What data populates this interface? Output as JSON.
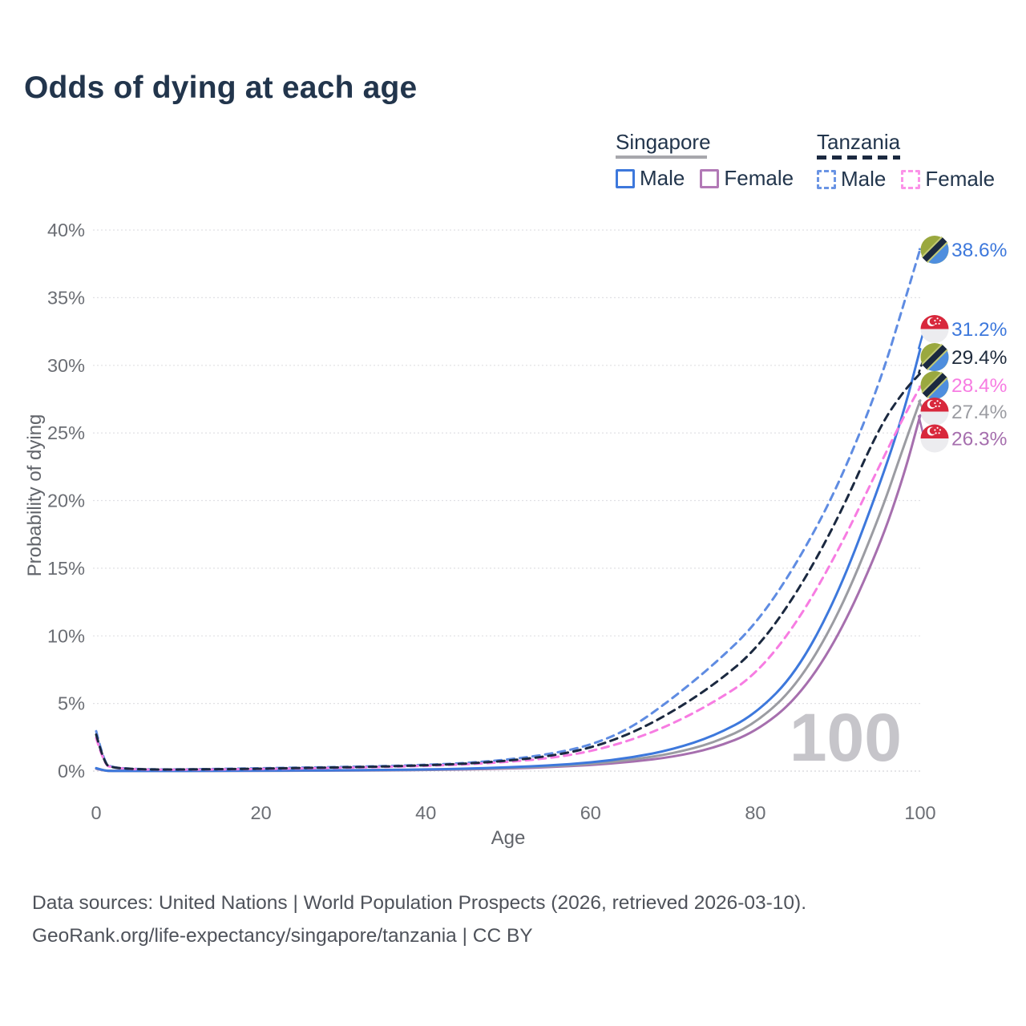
{
  "title": "Odds of dying at each age",
  "legend": {
    "groups": [
      {
        "label": "Singapore",
        "line_style": "solid",
        "line_color": "#a7a7ac",
        "items": [
          {
            "label": "Male",
            "color": "#3d78dc",
            "style": "solid"
          },
          {
            "label": "Female",
            "color": "#b279b6",
            "style": "solid"
          }
        ]
      },
      {
        "label": "Tanzania",
        "line_style": "dashed",
        "line_color": "#1b2940",
        "items": [
          {
            "label": "Male",
            "color": "#6a94e4",
            "style": "dashed"
          },
          {
            "label": "Female",
            "color": "#fb93e8",
            "style": "dashed"
          }
        ]
      }
    ]
  },
  "chart_data": {
    "type": "line",
    "title": "Odds of dying at each age",
    "xlabel": "Age",
    "ylabel": "Probability of dying",
    "xlim": [
      0,
      100
    ],
    "ylim": [
      0,
      40
    ],
    "x_ticks": [
      0,
      20,
      40,
      60,
      80,
      100
    ],
    "y_ticks": [
      0,
      5,
      10,
      15,
      20,
      25,
      30,
      35,
      40
    ],
    "y_tick_suffix": "%",
    "grid": "horizontal-dotted",
    "legend_position": "top-right",
    "watermark": "100",
    "x": [
      0,
      1,
      2,
      3,
      5,
      8,
      12,
      16,
      20,
      25,
      30,
      35,
      40,
      45,
      50,
      55,
      60,
      65,
      70,
      75,
      80,
      85,
      90,
      95,
      98,
      100
    ],
    "series": [
      {
        "name": "Singapore Female",
        "country": "Singapore",
        "sex": "Female",
        "line": "solid",
        "color": "#a66fae",
        "label_color": "#a66fae",
        "end_label": "26.3%",
        "end_value": 26.3,
        "values": [
          0.18,
          0.02,
          0.01,
          0.01,
          0.01,
          0.01,
          0.01,
          0.02,
          0.02,
          0.03,
          0.04,
          0.05,
          0.08,
          0.12,
          0.19,
          0.29,
          0.44,
          0.68,
          1.05,
          1.7,
          2.9,
          5.3,
          9.8,
          16.5,
          21.8,
          26.3
        ]
      },
      {
        "name": "Singapore Both sexes",
        "country": "Singapore",
        "sex": "Both",
        "line": "solid",
        "color": "#9b9ca2",
        "label_color": "#9b9ca2",
        "end_label": "27.4%",
        "end_value": 27.4,
        "values": [
          0.2,
          0.025,
          0.015,
          0.015,
          0.01,
          0.01,
          0.015,
          0.025,
          0.03,
          0.04,
          0.05,
          0.065,
          0.1,
          0.15,
          0.23,
          0.35,
          0.52,
          0.83,
          1.3,
          2.1,
          3.5,
          6.3,
          11.4,
          18.7,
          24.0,
          27.4
        ]
      },
      {
        "name": "Singapore Male",
        "country": "Singapore",
        "sex": "Male",
        "line": "solid",
        "color": "#3d78dc",
        "label_color": "#3d78dc",
        "end_label": "31.2%",
        "end_value": 31.2,
        "values": [
          0.22,
          0.03,
          0.02,
          0.02,
          0.01,
          0.01,
          0.02,
          0.03,
          0.04,
          0.05,
          0.06,
          0.08,
          0.12,
          0.18,
          0.28,
          0.42,
          0.62,
          1.0,
          1.6,
          2.6,
          4.2,
          7.3,
          13.0,
          21.0,
          26.5,
          31.2
        ]
      },
      {
        "name": "Tanzania Male",
        "country": "Tanzania",
        "sex": "Male",
        "line": "dashed",
        "color": "#5f8ce2",
        "label_color": "#3d78dc",
        "end_label": "38.6%",
        "end_value": 38.6,
        "values": [
          2.95,
          0.5,
          0.3,
          0.22,
          0.15,
          0.12,
          0.14,
          0.17,
          0.21,
          0.26,
          0.31,
          0.37,
          0.46,
          0.6,
          0.85,
          1.25,
          1.9,
          3.2,
          5.4,
          7.9,
          10.8,
          15.3,
          21.0,
          28.5,
          34.5,
          38.6
        ]
      },
      {
        "name": "Tanzania Female",
        "country": "Tanzania",
        "sex": "Female",
        "line": "dashed",
        "color": "#f77ce2",
        "label_color": "#f77ce2",
        "end_label": "28.4%",
        "end_value": 28.4,
        "values": [
          2.45,
          0.45,
          0.27,
          0.2,
          0.13,
          0.1,
          0.11,
          0.13,
          0.16,
          0.2,
          0.25,
          0.31,
          0.39,
          0.5,
          0.68,
          0.95,
          1.45,
          2.3,
          3.5,
          5.1,
          7.1,
          10.9,
          16.2,
          22.5,
          26.2,
          28.4
        ]
      },
      {
        "name": "Tanzania Both sexes",
        "country": "Tanzania",
        "sex": "Both",
        "line": "dashed",
        "color": "#1b2940",
        "label_color": "#202c3d",
        "end_label": "29.4%",
        "end_value": 29.4,
        "values": [
          2.7,
          0.48,
          0.28,
          0.21,
          0.14,
          0.11,
          0.13,
          0.15,
          0.18,
          0.23,
          0.28,
          0.34,
          0.43,
          0.55,
          0.77,
          1.1,
          1.7,
          2.8,
          4.4,
          6.4,
          8.9,
          13.1,
          18.6,
          25.4,
          28.1,
          29.4
        ]
      }
    ]
  },
  "footer": {
    "line1": "Data sources: United Nations | World Population Prospects (2026, retrieved 2026-03-10).",
    "line2": "GeoRank.org/life-expectancy/singapore/tanzania | CC BY"
  }
}
